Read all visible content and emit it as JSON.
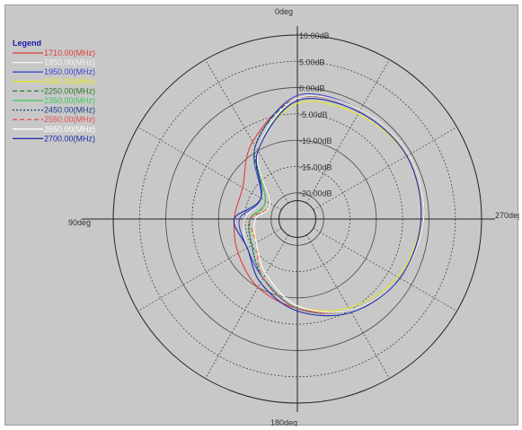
{
  "chart_data": {
    "type": "polar-line",
    "title": "",
    "angle_labels": [
      "0deg",
      "90deg",
      "180deg",
      "270deg"
    ],
    "angle_ticks_deg": [
      0,
      30,
      60,
      90,
      120,
      150,
      180,
      210,
      240,
      270,
      300,
      330
    ],
    "angle_direction": "counterclockwise",
    "zero_at": "top",
    "radial_range_db": [
      -25,
      10
    ],
    "radial_labels": [
      "10.00dB",
      "5.00dB",
      "0.00dB",
      "-5.00dB",
      "-10.00dB",
      "-15.00dB",
      "-20.00dB"
    ],
    "radial_ticks_db": [
      10,
      5,
      0,
      -5,
      -10,
      -15,
      -20
    ],
    "grid": true,
    "legend": {
      "title": "Legend",
      "placement": "top-left"
    },
    "angles_deg": [
      0,
      30,
      60,
      90,
      120,
      150,
      180,
      210,
      240,
      270,
      300,
      330
    ],
    "series": [
      {
        "name": "1710.00(MHz)",
        "color": "#e23b3b",
        "dash": "solid",
        "values": [
          -2,
          -8,
          -13,
          -13,
          -12,
          -10,
          -8,
          -5,
          -2.5,
          -1,
          -0.5,
          -1
        ]
      },
      {
        "name": "1850.00(MHz)",
        "color": "#f2f2f2",
        "dash": "solid",
        "values": [
          -2,
          -9,
          -17,
          -15,
          -14,
          -12,
          -8,
          -5,
          -2.5,
          -1,
          -0.5,
          -1
        ]
      },
      {
        "name": "1950.00(MHz)",
        "color": "#3a46c8",
        "dash": "solid",
        "values": [
          -1.5,
          -9,
          -17,
          -14,
          -14,
          -12,
          -8,
          -5,
          -2.5,
          -1,
          -0.5,
          -1
        ]
      },
      {
        "name": "2050.00(MHz)",
        "color": "#e6e62a",
        "dash": "solid",
        "values": [
          -3,
          -10,
          -19,
          -16,
          -16,
          -13,
          -8.5,
          -5.5,
          -3,
          -1.5,
          -1,
          -2
        ]
      },
      {
        "name": "2250.00(MHz)",
        "color": "#2a7a2a",
        "dash": "dashed",
        "values": [
          -2,
          -9,
          -18,
          -16,
          -15,
          -12,
          -8,
          -5,
          -2.5,
          -1,
          -0.5,
          -1
        ]
      },
      {
        "name": "2350.00(MHz)",
        "color": "#3cc85a",
        "dash": "solid",
        "values": [
          -2,
          -10,
          -18,
          -16,
          -15,
          -12,
          -8,
          -5,
          -2.5,
          -1,
          -0.5,
          -1
        ]
      },
      {
        "name": "2450.00(MHz)",
        "color": "#1f3a8a",
        "dash": "dotted",
        "values": [
          -2,
          -9,
          -19,
          -16,
          -15,
          -12,
          -8,
          -5,
          -2.5,
          -1,
          -0.5,
          -1
        ]
      },
      {
        "name": "2550.00(MHz)",
        "color": "#e85050",
        "dash": "dashed",
        "values": [
          -2,
          -10,
          -19,
          -16,
          -16,
          -12,
          -8,
          -5,
          -2.5,
          -1,
          -0.5,
          -1
        ]
      },
      {
        "name": "2650.00(MHz)",
        "color": "#ffffff",
        "dash": "solid",
        "values": [
          -2,
          -10,
          -19,
          -17,
          -16,
          -13,
          -8.5,
          -5,
          -2.5,
          -1,
          -0.5,
          -1
        ]
      },
      {
        "name": "2700.00(MHz)",
        "color": "#1a2aa8",
        "dash": "solid",
        "values": [
          -2.5,
          -10,
          -17,
          -13,
          -14,
          -11,
          -7.5,
          -4.5,
          -2.5,
          -1.5,
          -1,
          -1.5
        ]
      }
    ]
  }
}
